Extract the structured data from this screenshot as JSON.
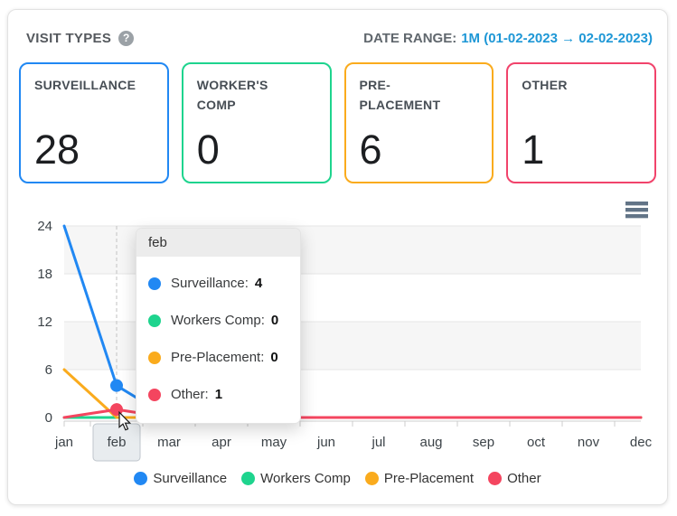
{
  "header": {
    "title": "VISIT TYPES",
    "help_icon": "?",
    "date_range": {
      "label": "DATE RANGE:",
      "value": "1M (01-02-2023 → 02-02-2023)"
    }
  },
  "stat_cards": [
    {
      "label": "SURVEILLANCE",
      "value": "28",
      "color": "#2188f3"
    },
    {
      "label": "WORKER'S COMP",
      "value": "0",
      "color": "#1ed48e"
    },
    {
      "label": "PRE-PLACEMENT",
      "value": "6",
      "color": "#faab1d"
    },
    {
      "label": "OTHER",
      "value": "1",
      "color": "#f1436b"
    }
  ],
  "chart_data": {
    "type": "line",
    "categories": [
      "jan",
      "feb",
      "mar",
      "apr",
      "may",
      "jun",
      "jul",
      "aug",
      "sep",
      "oct",
      "nov",
      "dec"
    ],
    "series": [
      {
        "name": "Surveillance",
        "color": "#2188f3",
        "values": [
          24,
          4,
          0,
          0,
          0,
          0,
          0,
          0,
          0,
          0,
          0,
          0
        ]
      },
      {
        "name": "Workers Comp",
        "color": "#1ed48e",
        "values": [
          0,
          0,
          0,
          0,
          0,
          0,
          0,
          0,
          0,
          0,
          0,
          0
        ]
      },
      {
        "name": "Pre-Placement",
        "color": "#faab1d",
        "values": [
          6,
          0,
          0,
          0,
          0,
          0,
          0,
          0,
          0,
          0,
          0,
          0
        ]
      },
      {
        "name": "Other",
        "color": "#f4455f",
        "values": [
          0,
          1,
          0,
          0,
          0,
          0,
          0,
          0,
          0,
          0,
          0,
          0
        ]
      }
    ],
    "yticks": [
      0,
      6,
      12,
      18,
      24
    ],
    "ylim": [
      0,
      24
    ],
    "band_ranges": [
      [
        18,
        24
      ],
      [
        6,
        12
      ]
    ],
    "grid": "on",
    "legend_position": "bottom",
    "hover": {
      "category": "feb",
      "points": [
        {
          "series": "Surveillance",
          "value": 4
        },
        {
          "series": "Other",
          "value": 1
        }
      ]
    }
  },
  "tooltip": {
    "title": "feb",
    "rows": [
      {
        "label": "Surveillance:",
        "value": "4",
        "color": "#2188f3"
      },
      {
        "label": "Workers Comp:",
        "value": "0",
        "color": "#1ed48e"
      },
      {
        "label": "Pre-Placement:",
        "value": "0",
        "color": "#faab1d"
      },
      {
        "label": "Other:",
        "value": "1",
        "color": "#f4455f"
      }
    ]
  },
  "legend": {
    "items": [
      {
        "label": "Surveillance",
        "color": "#2188f3"
      },
      {
        "label": "Workers Comp",
        "color": "#1ed48e"
      },
      {
        "label": "Pre-Placement",
        "color": "#faab1d"
      },
      {
        "label": "Other",
        "color": "#f4455f"
      }
    ]
  },
  "chart_menu": {
    "icon": "hamburger-menu-icon"
  },
  "chart_colors": {
    "band": "#f6f6f6",
    "gridline": "#e6e6e6",
    "axis": "#cccccc",
    "crosshair": "#c2c2c2",
    "axis_text": "#3c4348",
    "hover_box_fill": "#e8ecef",
    "hover_box_border": "#bfc6cc"
  }
}
